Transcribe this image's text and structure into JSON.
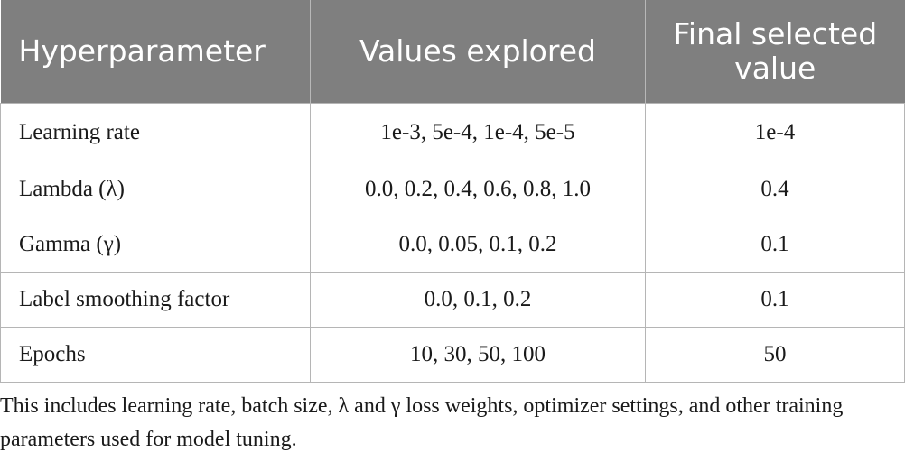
{
  "table": {
    "headers": [
      "Hyperparameter",
      "Values explored",
      "Final selected value"
    ],
    "rows": [
      [
        "Learning rate",
        "1e-3, 5e-4, 1e-4, 5e-5",
        "1e-4"
      ],
      [
        "Lambda (λ)",
        "0.0, 0.2, 0.4, 0.6, 0.8, 1.0",
        "0.4"
      ],
      [
        "Gamma (γ)",
        "0.0, 0.05, 0.1, 0.2",
        "0.1"
      ],
      [
        "Label smoothing factor",
        "0.0, 0.1, 0.2",
        "0.1"
      ],
      [
        "Epochs",
        "10, 30, 50, 100",
        "50"
      ]
    ]
  },
  "footnote": "This includes learning rate, batch size, λ and γ loss weights, optimizer settings, and other training parameters used for model tuning.",
  "colors": {
    "header_bg": "#7f7f7f",
    "header_text": "#ffffff",
    "border": "#b5b5b5"
  }
}
